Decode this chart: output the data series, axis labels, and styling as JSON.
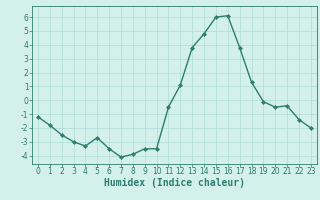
{
  "x": [
    0,
    1,
    2,
    3,
    4,
    5,
    6,
    7,
    8,
    9,
    10,
    11,
    12,
    13,
    14,
    15,
    16,
    17,
    18,
    19,
    20,
    21,
    22,
    23
  ],
  "y": [
    -1.2,
    -1.8,
    -2.5,
    -3.0,
    -3.3,
    -2.7,
    -3.5,
    -4.1,
    -3.9,
    -3.5,
    -3.5,
    -0.5,
    1.1,
    3.8,
    4.8,
    6.0,
    6.1,
    3.8,
    1.3,
    -0.1,
    -0.5,
    -0.4,
    -1.4,
    -2.0
  ],
  "line_color": "#2e7d6e",
  "marker": "D",
  "marker_size": 2.0,
  "line_width": 1.0,
  "xlabel": "Humidex (Indice chaleur)",
  "xlabel_fontsize": 7,
  "bg_color": "#d4f0ea",
  "grid_color": "#b0ddd6",
  "tick_color": "#2e7d6e",
  "spine_color": "#2e7d6e",
  "xlim": [
    -0.5,
    23.5
  ],
  "ylim": [
    -4.6,
    6.8
  ],
  "yticks": [
    -4,
    -3,
    -2,
    -1,
    0,
    1,
    2,
    3,
    4,
    5,
    6
  ],
  "xticks": [
    0,
    1,
    2,
    3,
    4,
    5,
    6,
    7,
    8,
    9,
    10,
    11,
    12,
    13,
    14,
    15,
    16,
    17,
    18,
    19,
    20,
    21,
    22,
    23
  ],
  "tick_fontsize": 5.5
}
